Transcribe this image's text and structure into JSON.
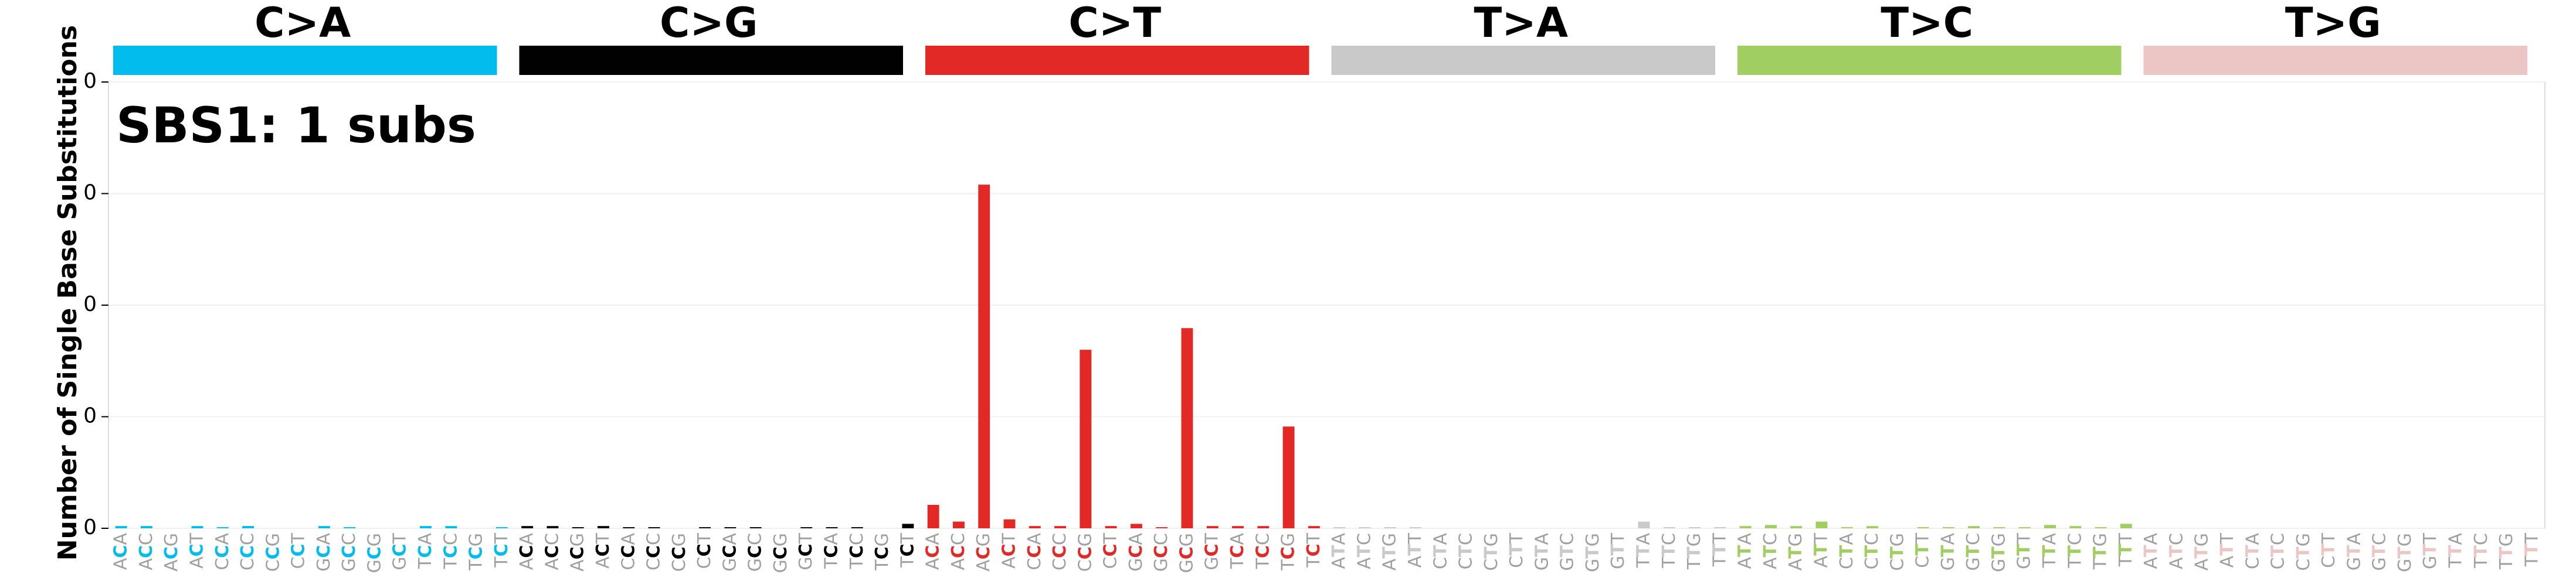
{
  "chart_data": {
    "type": "bar",
    "title": "SBS1: 1 subs",
    "y_label": "Number of Single Base Substitutions",
    "groups": [
      {
        "name": "C>A",
        "color": "#03bcee"
      },
      {
        "name": "C>G",
        "color": "#010101"
      },
      {
        "name": "C>T",
        "color": "#e32926"
      },
      {
        "name": "T>A",
        "color": "#cac9c9"
      },
      {
        "name": "T>C",
        "color": "#a1ce63"
      },
      {
        "name": "T>G",
        "color": "#ebc6c4"
      }
    ],
    "categories": [
      "ACA",
      "ACC",
      "ACG",
      "ACT",
      "CCA",
      "CCC",
      "CCG",
      "CCT",
      "GCA",
      "GCC",
      "GCG",
      "GCT",
      "TCA",
      "TCC",
      "TCG",
      "TCT",
      "ACA",
      "ACC",
      "ACG",
      "ACT",
      "CCA",
      "CCC",
      "CCG",
      "CCT",
      "GCA",
      "GCC",
      "GCG",
      "GCT",
      "TCA",
      "TCC",
      "TCG",
      "TCT",
      "ACA",
      "ACC",
      "ACG",
      "ACT",
      "CCA",
      "CCC",
      "CCG",
      "CCT",
      "GCA",
      "GCC",
      "GCG",
      "GCT",
      "TCA",
      "TCC",
      "TCG",
      "TCT",
      "ATA",
      "ATC",
      "ATG",
      "ATT",
      "CTA",
      "CTC",
      "CTG",
      "CTT",
      "GTA",
      "GTC",
      "GTG",
      "GTT",
      "TTA",
      "TTC",
      "TTG",
      "TTT",
      "ATA",
      "ATC",
      "ATG",
      "ATT",
      "CTA",
      "CTC",
      "CTG",
      "CTT",
      "GTA",
      "GTC",
      "GTG",
      "GTT",
      "TTA",
      "TTC",
      "TTG",
      "TTT",
      "ATA",
      "ATC",
      "ATG",
      "ATT",
      "CTA",
      "CTC",
      "CTG",
      "CTT",
      "GTA",
      "GTC",
      "GTG",
      "GTT",
      "TTA",
      "TTC",
      "TTG",
      "TTT"
    ],
    "values": [
      0.001,
      0.001,
      0,
      0.001,
      0.0005,
      0.001,
      0,
      0,
      0.001,
      0.0005,
      0,
      0,
      0.001,
      0.001,
      0,
      0.0005,
      0.001,
      0.001,
      0.0005,
      0.001,
      0.0005,
      0.0005,
      0,
      0.0005,
      0.0005,
      0.0005,
      0,
      0.0005,
      0.0005,
      0.0005,
      0,
      0.002,
      0.0105,
      0.003,
      0.154,
      0.004,
      0.001,
      0.001,
      0.08,
      0.001,
      0.002,
      0.0005,
      0.0897,
      0.001,
      0.001,
      0.001,
      0.0456,
      0.001,
      0.0005,
      0.0005,
      0.0005,
      0.0005,
      0,
      0,
      0,
      0,
      0,
      0,
      0,
      0,
      0.003,
      0.0005,
      0.0005,
      0.0005,
      0.001,
      0.0015,
      0.001,
      0.003,
      0.0005,
      0.001,
      0,
      0.0005,
      0.0005,
      0.001,
      0.0005,
      0.0005,
      0.0015,
      0.001,
      0.0005,
      0.002,
      0,
      0,
      0,
      0,
      0,
      0,
      0,
      0,
      0,
      0,
      0,
      0,
      0,
      0,
      0,
      0
    ],
    "ylim": [
      0,
      0.2
    ],
    "yticks": [
      {
        "value": 0,
        "label": "0"
      },
      {
        "value": 0.05,
        "label": "0"
      },
      {
        "value": 0.1,
        "label": "0"
      },
      {
        "value": 0.15,
        "label": "0"
      },
      {
        "value": 0.2,
        "label": "0"
      }
    ],
    "grid": true
  }
}
